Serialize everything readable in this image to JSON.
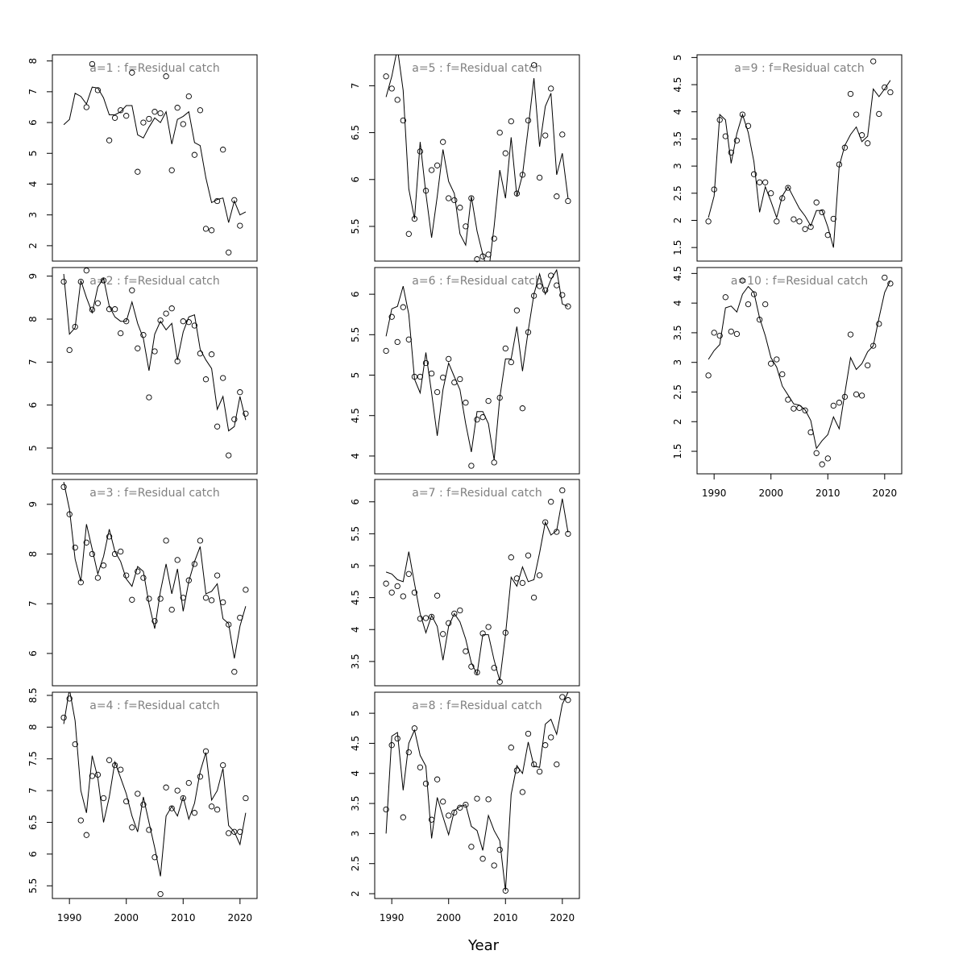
{
  "xlabel": "Year",
  "chart_data": [
    {
      "type": "line",
      "title": "a=1  :  f=Residual catch",
      "ylim": [
        1.5,
        8.2
      ],
      "yticks": [
        2,
        3,
        4,
        5,
        6,
        7,
        8
      ],
      "xlim": [
        1987,
        2023
      ],
      "xticks": [
        1990,
        2000,
        2010,
        2020
      ],
      "x": [
        1989,
        1990,
        1991,
        1992,
        1993,
        1994,
        1995,
        1996,
        1997,
        1998,
        1999,
        2000,
        2001,
        2002,
        2003,
        2004,
        2005,
        2006,
        2007,
        2008,
        2009,
        2010,
        2011,
        2012,
        2013,
        2014,
        2015,
        2016,
        2017,
        2018,
        2019,
        2020,
        2021
      ],
      "fitted": [
        5.93,
        6.1,
        6.95,
        6.85,
        6.6,
        7.15,
        7.12,
        6.8,
        6.25,
        6.25,
        6.35,
        6.55,
        6.55,
        5.6,
        5.5,
        5.85,
        6.15,
        6.0,
        6.35,
        5.3,
        6.1,
        6.2,
        6.35,
        5.35,
        5.25,
        4.2,
        3.4,
        3.5,
        3.55,
        2.75,
        3.45,
        3.0,
        3.1
      ],
      "observed": [
        null,
        null,
        null,
        null,
        6.5,
        7.9,
        7.05,
        null,
        5.42,
        6.15,
        6.4,
        6.22,
        7.62,
        4.4,
        6.0,
        6.12,
        6.35,
        6.3,
        7.5,
        4.45,
        6.48,
        5.95,
        6.85,
        4.95,
        6.4,
        2.55,
        2.5,
        3.45,
        5.12,
        1.78,
        3.48,
        2.65,
        null
      ]
    },
    {
      "type": "line",
      "title": "a=2  :  f=Residual catch",
      "ylim": [
        4.4,
        9.2
      ],
      "yticks": [
        5,
        6,
        7,
        8,
        9
      ],
      "xlim": [
        1987,
        2023
      ],
      "xticks": [
        1990,
        2000,
        2010,
        2020
      ],
      "x": [
        1989,
        1990,
        1991,
        1992,
        1993,
        1994,
        1995,
        1996,
        1997,
        1998,
        1999,
        2000,
        2001,
        2002,
        2003,
        2004,
        2005,
        2006,
        2007,
        2008,
        2009,
        2010,
        2011,
        2012,
        2013,
        2014,
        2015,
        2016,
        2017,
        2018,
        2019,
        2020,
        2021
      ],
      "fitted": [
        9.05,
        7.65,
        7.8,
        8.9,
        8.5,
        8.15,
        8.75,
        8.95,
        8.3,
        8.05,
        7.95,
        7.95,
        8.4,
        7.9,
        7.55,
        6.8,
        7.65,
        7.95,
        7.75,
        7.9,
        7.05,
        7.7,
        8.05,
        8.1,
        7.3,
        7.05,
        6.85,
        5.9,
        6.2,
        5.4,
        5.5,
        6.2,
        5.65
      ],
      "observed": [
        8.87,
        7.28,
        7.82,
        8.87,
        9.13,
        8.22,
        8.37,
        8.9,
        8.23,
        8.23,
        7.67,
        7.95,
        8.67,
        7.32,
        7.63,
        6.18,
        7.25,
        7.97,
        8.13,
        8.25,
        7.02,
        7.95,
        7.93,
        7.85,
        7.2,
        6.6,
        7.18,
        5.5,
        6.63,
        4.83,
        5.67,
        6.3,
        5.8
      ]
    },
    {
      "type": "line",
      "title": "a=3  :  f=Residual catch",
      "ylim": [
        5.35,
        9.5
      ],
      "yticks": [
        6,
        7,
        8,
        9
      ],
      "xlim": [
        1987,
        2023
      ],
      "xticks": [
        1990,
        2000,
        2010,
        2020
      ],
      "x": [
        1989,
        1990,
        1991,
        1992,
        1993,
        1994,
        1995,
        1996,
        1997,
        1998,
        1999,
        2000,
        2001,
        2002,
        2003,
        2004,
        2005,
        2006,
        2007,
        2008,
        2009,
        2010,
        2011,
        2012,
        2013,
        2014,
        2015,
        2016,
        2017,
        2018,
        2019,
        2020,
        2021
      ],
      "fitted": [
        9.45,
        8.9,
        7.9,
        7.45,
        8.6,
        8.1,
        7.6,
        7.95,
        8.5,
        8.05,
        7.85,
        7.5,
        7.35,
        7.75,
        7.65,
        7.0,
        6.5,
        7.25,
        7.8,
        7.2,
        7.7,
        6.85,
        7.45,
        7.85,
        8.15,
        7.2,
        7.25,
        7.4,
        6.7,
        6.6,
        5.9,
        6.55,
        6.95
      ],
      "observed": [
        9.35,
        8.8,
        8.13,
        7.43,
        8.23,
        8.0,
        7.52,
        7.77,
        8.35,
        8.0,
        8.05,
        7.57,
        7.08,
        7.65,
        7.52,
        7.1,
        6.65,
        7.1,
        8.27,
        6.88,
        7.88,
        7.12,
        7.47,
        7.8,
        8.27,
        7.12,
        7.07,
        7.57,
        7.03,
        6.58,
        5.63,
        6.72,
        7.28
      ]
    },
    {
      "type": "line",
      "title": "a=4  :  f=Residual catch",
      "ylim": [
        5.3,
        8.55
      ],
      "yticks": [
        5.5,
        6.0,
        6.5,
        7.0,
        7.5,
        8.0,
        8.5
      ],
      "xlim": [
        1987,
        2023
      ],
      "xticks": [
        1990,
        2000,
        2010,
        2020
      ],
      "x": [
        1989,
        1990,
        1991,
        1992,
        1993,
        1994,
        1995,
        1996,
        1997,
        1998,
        1999,
        2000,
        2001,
        2002,
        2003,
        2004,
        2005,
        2006,
        2007,
        2008,
        2009,
        2010,
        2011,
        2012,
        2013,
        2014,
        2015,
        2016,
        2017,
        2018,
        2019,
        2020,
        2021
      ],
      "fitted": [
        8.05,
        8.6,
        8.1,
        7.0,
        6.65,
        7.55,
        7.2,
        6.5,
        6.9,
        7.45,
        7.2,
        6.95,
        6.6,
        6.35,
        6.9,
        6.5,
        6.1,
        5.65,
        6.6,
        6.75,
        6.6,
        6.9,
        6.55,
        6.8,
        7.3,
        7.6,
        6.85,
        7.0,
        7.35,
        6.45,
        6.35,
        6.15,
        6.65
      ],
      "observed": [
        8.15,
        8.45,
        7.73,
        6.53,
        6.3,
        7.23,
        7.25,
        6.88,
        7.48,
        7.4,
        7.33,
        6.83,
        6.42,
        6.95,
        6.78,
        6.38,
        5.95,
        5.37,
        7.05,
        6.72,
        7.0,
        6.88,
        7.12,
        6.65,
        7.22,
        7.62,
        6.75,
        6.7,
        7.4,
        6.33,
        6.35,
        6.35,
        6.88
      ]
    },
    {
      "type": "line",
      "title": "a=5  :  f=Residual catch",
      "ylim": [
        5.13,
        7.33
      ],
      "yticks": [
        5.5,
        6.0,
        6.5,
        7.0
      ],
      "xlim": [
        1987,
        2023
      ],
      "xticks": [
        1990,
        2000,
        2010,
        2020
      ],
      "x": [
        1989,
        1990,
        1991,
        1992,
        1993,
        1994,
        1995,
        1996,
        1997,
        1998,
        1999,
        2000,
        2001,
        2002,
        2003,
        2004,
        2005,
        2006,
        2007,
        2008,
        2009,
        2010,
        2011,
        2012,
        2013,
        2014,
        2015,
        2016,
        2017,
        2018,
        2019,
        2020,
        2021
      ],
      "fitted": [
        6.88,
        7.1,
        7.4,
        6.95,
        5.9,
        5.58,
        6.4,
        5.85,
        5.38,
        5.82,
        6.32,
        5.98,
        5.85,
        5.42,
        5.3,
        5.82,
        5.45,
        5.2,
        5.0,
        5.5,
        6.1,
        5.8,
        6.45,
        5.82,
        6.05,
        6.55,
        7.08,
        6.35,
        6.78,
        6.92,
        6.05,
        6.28,
        5.8
      ],
      "observed": [
        7.1,
        6.97,
        6.85,
        6.63,
        5.42,
        5.58,
        6.3,
        5.88,
        6.1,
        6.15,
        6.4,
        5.8,
        5.78,
        5.7,
        5.5,
        5.8,
        5.15,
        5.18,
        5.2,
        5.37,
        6.5,
        6.28,
        6.62,
        5.85,
        6.05,
        6.63,
        7.22,
        6.02,
        6.47,
        6.97,
        5.82,
        6.48,
        5.77
      ]
    },
    {
      "type": "line",
      "title": "a=6  :  f=Residual catch",
      "ylim": [
        3.78,
        6.33
      ],
      "yticks": [
        4.0,
        4.5,
        5.0,
        5.5,
        6.0
      ],
      "xlim": [
        1987,
        2023
      ],
      "xticks": [
        1990,
        2000,
        2010,
        2020
      ],
      "x": [
        1989,
        1990,
        1991,
        1992,
        1993,
        1994,
        1995,
        1996,
        1997,
        1998,
        1999,
        2000,
        2001,
        2002,
        2003,
        2004,
        2005,
        2006,
        2007,
        2008,
        2009,
        2010,
        2011,
        2012,
        2013,
        2014,
        2015,
        2016,
        2017,
        2018,
        2019,
        2020,
        2021
      ],
      "fitted": [
        5.48,
        5.82,
        5.85,
        6.1,
        5.75,
        4.95,
        4.78,
        5.28,
        4.78,
        4.25,
        4.82,
        5.15,
        4.98,
        4.82,
        4.4,
        4.05,
        4.55,
        4.55,
        4.4,
        3.95,
        4.72,
        5.2,
        5.2,
        5.6,
        5.05,
        5.55,
        6.0,
        6.25,
        6.0,
        6.18,
        6.3,
        5.88,
        5.85
      ],
      "observed": [
        5.3,
        5.72,
        5.41,
        5.84,
        5.44,
        4.98,
        4.98,
        5.15,
        5.02,
        4.79,
        4.97,
        5.2,
        4.91,
        4.95,
        4.66,
        3.88,
        4.45,
        4.48,
        4.68,
        3.92,
        4.72,
        5.33,
        5.16,
        5.8,
        4.59,
        5.53,
        5.98,
        6.1,
        6.05,
        6.23,
        6.11,
        5.99,
        5.85
      ]
    },
    {
      "type": "line",
      "title": "a=7  :  f=Residual catch",
      "ylim": [
        3.12,
        6.35
      ],
      "yticks": [
        3.5,
        4.0,
        4.5,
        5.0,
        5.5,
        6.0
      ],
      "xlim": [
        1987,
        2023
      ],
      "xticks": [
        1990,
        2000,
        2010,
        2020
      ],
      "x": [
        1989,
        1990,
        1991,
        1992,
        1993,
        1994,
        1995,
        1996,
        1997,
        1998,
        1999,
        2000,
        2001,
        2002,
        2003,
        2004,
        2005,
        2006,
        2007,
        2008,
        2009,
        2010,
        2011,
        2012,
        2013,
        2014,
        2015,
        2016,
        2017,
        2018,
        2019,
        2020,
        2021
      ],
      "fitted": [
        4.9,
        4.87,
        4.78,
        4.75,
        5.22,
        4.72,
        4.25,
        3.95,
        4.22,
        4.05,
        3.52,
        4.05,
        4.25,
        4.12,
        3.85,
        3.48,
        3.3,
        3.92,
        3.92,
        3.52,
        3.2,
        3.92,
        4.82,
        4.68,
        4.98,
        4.75,
        4.78,
        5.2,
        5.68,
        5.48,
        5.55,
        6.05,
        5.52
      ],
      "observed": [
        4.72,
        4.58,
        4.68,
        4.52,
        4.87,
        4.58,
        4.17,
        4.18,
        4.2,
        4.53,
        3.93,
        4.1,
        4.25,
        4.3,
        3.66,
        3.42,
        3.33,
        3.94,
        4.04,
        3.4,
        3.18,
        3.95,
        5.13,
        4.8,
        4.73,
        5.16,
        4.5,
        4.85,
        5.68,
        6.0,
        5.53,
        6.18,
        5.5
      ]
    },
    {
      "type": "line",
      "title": "a=8  :  f=Residual catch",
      "ylim": [
        1.92,
        5.35
      ],
      "yticks": [
        2.0,
        2.5,
        3.0,
        3.5,
        4.0,
        4.5,
        5.0
      ],
      "xlim": [
        1987,
        2023
      ],
      "xticks": [
        1990,
        2000,
        2010,
        2020
      ],
      "x": [
        1989,
        1990,
        1991,
        1992,
        1993,
        1994,
        1995,
        1996,
        1997,
        1998,
        1999,
        2000,
        2001,
        2002,
        2003,
        2004,
        2005,
        2006,
        2007,
        2008,
        2009,
        2010,
        2011,
        2012,
        2013,
        2014,
        2015,
        2016,
        2017,
        2018,
        2019,
        2020,
        2021
      ],
      "fitted": [
        3.0,
        4.62,
        4.68,
        3.72,
        4.5,
        4.72,
        4.3,
        4.12,
        2.92,
        3.6,
        3.28,
        2.98,
        3.38,
        3.45,
        3.48,
        3.12,
        3.05,
        2.72,
        3.3,
        3.05,
        2.88,
        2.05,
        3.65,
        4.13,
        4.0,
        4.52,
        4.12,
        4.1,
        4.82,
        4.9,
        4.65,
        5.15,
        5.35
      ],
      "observed": [
        3.4,
        4.47,
        4.58,
        3.27,
        4.35,
        4.75,
        4.1,
        3.83,
        3.23,
        3.9,
        3.53,
        3.3,
        3.35,
        3.43,
        3.48,
        2.78,
        3.58,
        2.58,
        3.57,
        2.47,
        2.73,
        2.05,
        4.43,
        4.05,
        3.69,
        4.66,
        4.15,
        4.03,
        4.47,
        4.6,
        4.15,
        5.27,
        5.22
      ]
    },
    {
      "type": "line",
      "title": "a=9  :  f=Residual catch",
      "ylim": [
        1.25,
        5.05
      ],
      "yticks": [
        1.5,
        2.0,
        2.5,
        3.0,
        3.5,
        4.0,
        4.5,
        5.0
      ],
      "xlim": [
        1987,
        2023
      ],
      "xticks": [
        1990,
        2000,
        2010,
        2020
      ],
      "x": [
        1989,
        1990,
        1991,
        1992,
        1993,
        1994,
        1995,
        1996,
        1997,
        1998,
        1999,
        2000,
        2001,
        2002,
        2003,
        2004,
        2005,
        2006,
        2007,
        2008,
        2009,
        2010,
        2011,
        2012,
        2013,
        2014,
        2015,
        2016,
        2017,
        2018,
        2019,
        2020,
        2021
      ],
      "fitted": [
        2.05,
        2.45,
        3.95,
        3.85,
        3.05,
        3.6,
        3.95,
        3.62,
        3.08,
        2.15,
        2.62,
        2.35,
        2.05,
        2.45,
        2.62,
        2.42,
        2.22,
        2.08,
        1.9,
        2.18,
        2.18,
        1.88,
        1.5,
        3.0,
        3.38,
        3.58,
        3.72,
        3.45,
        3.55,
        4.42,
        4.28,
        4.42,
        4.58
      ],
      "observed": [
        1.98,
        2.57,
        3.85,
        3.55,
        3.25,
        3.47,
        3.95,
        3.74,
        2.85,
        2.7,
        2.7,
        2.5,
        1.98,
        2.41,
        2.6,
        2.02,
        1.98,
        1.84,
        1.88,
        2.33,
        2.15,
        1.73,
        2.03,
        3.03,
        3.34,
        4.33,
        3.95,
        3.57,
        3.42,
        4.93,
        3.96,
        4.45,
        4.36
      ]
    },
    {
      "type": "line",
      "title": "a=10  :  f=Residual catch",
      "ylim": [
        1.12,
        4.6
      ],
      "yticks": [
        1.5,
        2.0,
        2.5,
        3.0,
        3.5,
        4.0,
        4.5
      ],
      "xlim": [
        1987,
        2023
      ],
      "xticks": [
        1990,
        2000,
        2010,
        2020
      ],
      "x": [
        1989,
        1990,
        1991,
        1992,
        1993,
        1994,
        1995,
        1996,
        1997,
        1998,
        1999,
        2000,
        2001,
        2002,
        2003,
        2004,
        2005,
        2006,
        2007,
        2008,
        2009,
        2010,
        2011,
        2012,
        2013,
        2014,
        2015,
        2016,
        2017,
        2018,
        2019,
        2020,
        2021
      ],
      "fitted": [
        3.05,
        3.2,
        3.3,
        3.92,
        3.95,
        3.85,
        4.15,
        4.28,
        4.18,
        3.75,
        3.45,
        3.08,
        2.92,
        2.6,
        2.45,
        2.3,
        2.28,
        2.2,
        2.02,
        1.55,
        1.68,
        1.78,
        2.08,
        1.88,
        2.48,
        3.08,
        2.88,
        2.98,
        3.18,
        3.28,
        3.75,
        4.18,
        4.38
      ],
      "observed": [
        2.78,
        3.5,
        3.45,
        4.1,
        3.52,
        3.48,
        4.38,
        3.98,
        4.15,
        3.72,
        3.98,
        2.98,
        3.05,
        2.8,
        2.37,
        2.22,
        2.23,
        2.19,
        1.82,
        1.47,
        1.28,
        1.38,
        2.27,
        2.32,
        2.42,
        3.47,
        2.46,
        2.44,
        2.95,
        3.28,
        3.65,
        4.43,
        4.33
      ]
    }
  ]
}
